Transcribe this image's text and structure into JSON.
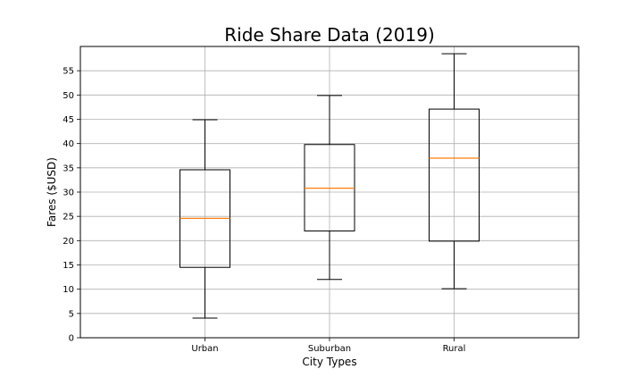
{
  "chart_data": {
    "type": "box",
    "title": "Ride Share Data (2019)",
    "xlabel": "City Types",
    "ylabel": "Fares ($USD)",
    "ylim": [
      0,
      60
    ],
    "yticks": [
      0,
      5,
      10,
      15,
      20,
      25,
      30,
      35,
      40,
      45,
      50,
      55
    ],
    "grid": true,
    "categories": [
      "Urban",
      "Suburban",
      "Rural"
    ],
    "boxes": [
      {
        "name": "Urban",
        "whisker_low": 4.05,
        "q1": 14.5,
        "median": 24.6,
        "q3": 34.6,
        "whisker_high": 44.9
      },
      {
        "name": "Suburban",
        "whisker_low": 12.0,
        "q1": 22.0,
        "median": 30.8,
        "q3": 39.8,
        "whisker_high": 49.9
      },
      {
        "name": "Rural",
        "whisker_low": 10.1,
        "q1": 19.9,
        "median": 37.0,
        "q3": 47.1,
        "whisker_high": 58.5
      }
    ],
    "colors": {
      "box": "#000000",
      "median": "#ff7f0e",
      "grid": "#b0b0b0",
      "background": "#ffffff"
    }
  }
}
